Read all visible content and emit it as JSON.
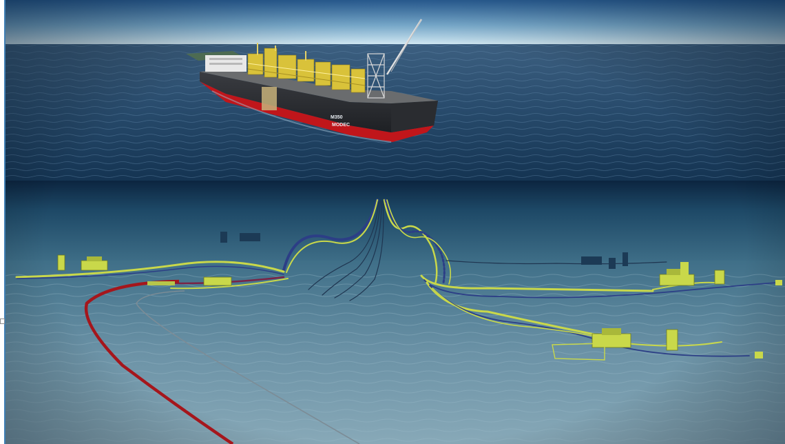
{
  "vessel": {
    "name_marking": "M350",
    "brand_marking": "MODEC"
  },
  "colors": {
    "sky_top": "#2f6aa8",
    "sky_horizon": "#cfe6f2",
    "ocean_surface": "#2a4e72",
    "ocean_deep": "#0f2b45",
    "seabed": "#6a8ea1",
    "hull_dark": "#2b2d31",
    "hull_red": "#c0161b",
    "topsides_yellow": "#d9c23a",
    "flowline_yellow": "#c9d84a",
    "export_pipeline_red": "#a5161c"
  }
}
